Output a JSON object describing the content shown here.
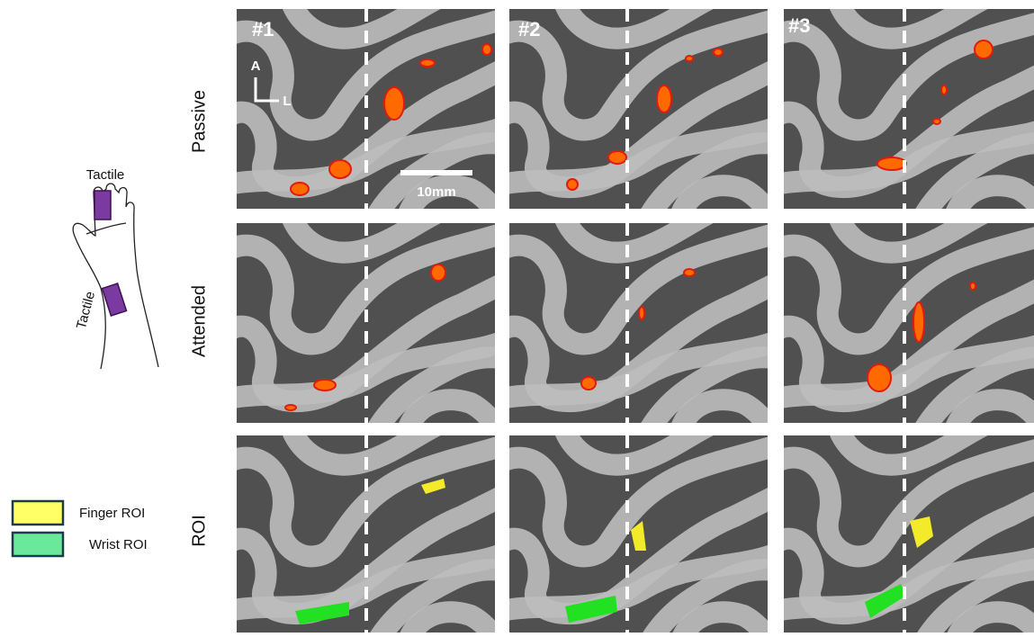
{
  "hand": {
    "finger_label": "Tactile",
    "wrist_label": "Tactile"
  },
  "columns": [
    "#1",
    "#2",
    "#3"
  ],
  "rows": [
    "Passive",
    "Attended",
    "ROI"
  ],
  "orientation": {
    "anterior": "A",
    "lateral": "L"
  },
  "scale_bar": "10mm",
  "legend": [
    {
      "label": "Finger ROI"
    },
    {
      "label": "Wrist ROI"
    }
  ]
}
